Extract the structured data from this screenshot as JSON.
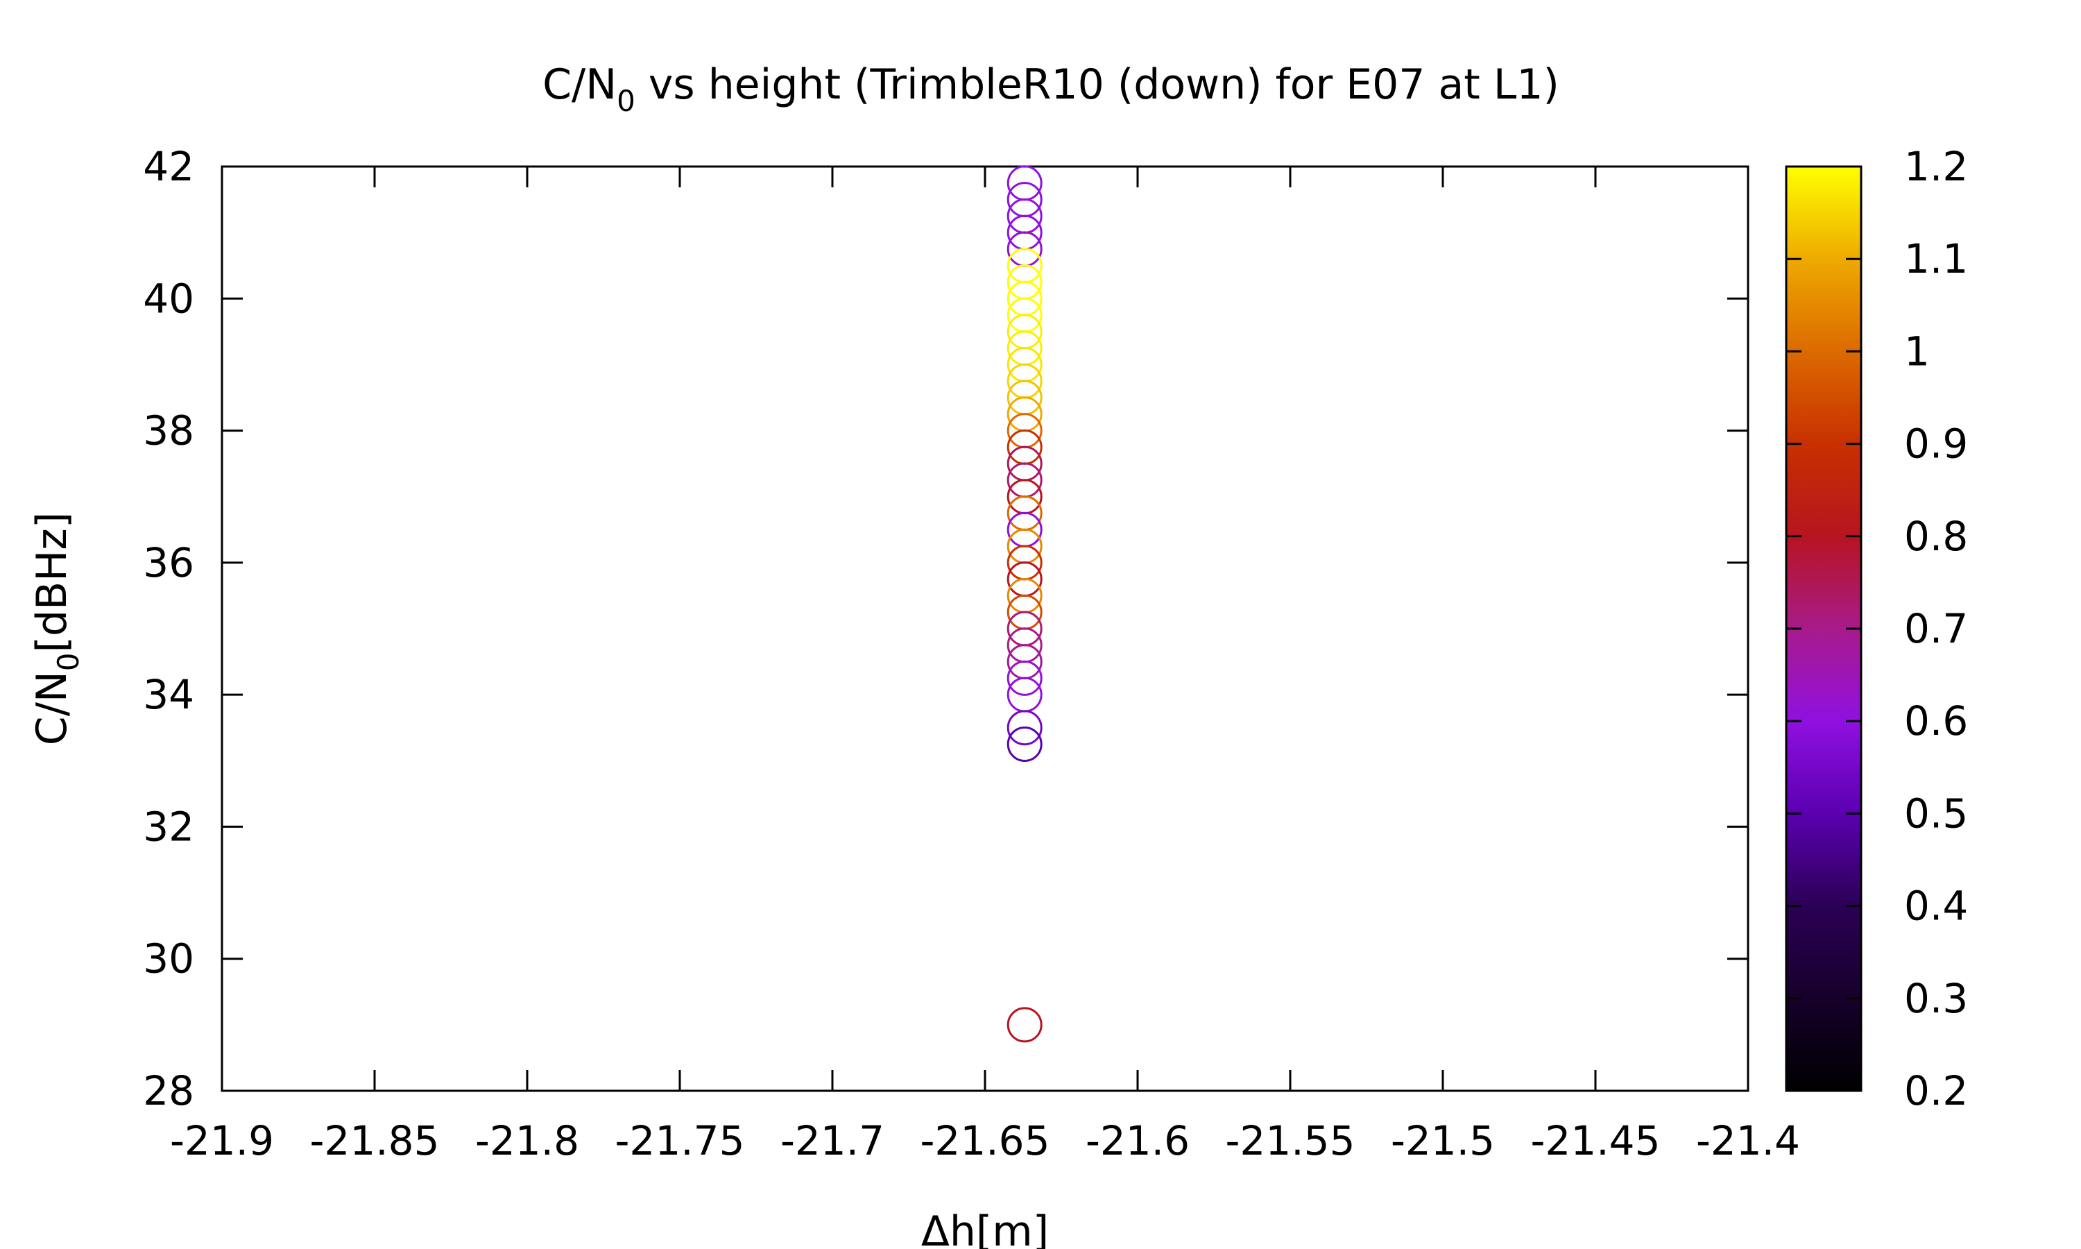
{
  "chart_data": {
    "type": "scatter",
    "title_main": "C/N",
    "title_sub": "0",
    "title_rest": " vs height (TrimbleR10 (down) for E07 at L1)",
    "xlabel": "Δh[m]",
    "ylabel_main": "C/N",
    "ylabel_sub": "0",
    "ylabel_rest": "[dBHz]",
    "xlim": [
      -21.9,
      -21.4
    ],
    "ylim": [
      28,
      42
    ],
    "xticks": [
      -21.9,
      -21.85,
      -21.8,
      -21.75,
      -21.7,
      -21.65,
      -21.6,
      -21.55,
      -21.5,
      -21.45,
      -21.4
    ],
    "xtick_labels": [
      "-21.9",
      "-21.85",
      "-21.8",
      "-21.75",
      "-21.7",
      "-21.65",
      "-21.6",
      "-21.55",
      "-21.5",
      "-21.45",
      "-21.4"
    ],
    "yticks": [
      28,
      30,
      32,
      34,
      36,
      38,
      40,
      42
    ],
    "ytick_labels": [
      "28",
      "30",
      "32",
      "34",
      "36",
      "38",
      "40",
      "42"
    ],
    "colorbar": {
      "range": [
        0.2,
        1.2
      ],
      "ticks": [
        0.2,
        0.3,
        0.4,
        0.5,
        0.6,
        0.7,
        0.8,
        0.9,
        1,
        1.1,
        1.2
      ],
      "tick_labels": [
        "0.2",
        "0.3",
        "0.4",
        "0.5",
        "0.6",
        "0.7",
        "0.8",
        "0.9",
        "1",
        "1.1",
        "1.2"
      ],
      "palette": "black-purple-red-yellow"
    },
    "marker": "open-circle",
    "grid": false,
    "points": [
      {
        "x": -21.637,
        "y": 41.75,
        "c": 0.6
      },
      {
        "x": -21.637,
        "y": 41.5,
        "c": 0.6
      },
      {
        "x": -21.637,
        "y": 41.25,
        "c": 0.6
      },
      {
        "x": -21.637,
        "y": 41.0,
        "c": 0.6
      },
      {
        "x": -21.637,
        "y": 40.75,
        "c": 0.62
      },
      {
        "x": -21.637,
        "y": 40.5,
        "c": 1.2
      },
      {
        "x": -21.637,
        "y": 40.25,
        "c": 1.2
      },
      {
        "x": -21.637,
        "y": 40.0,
        "c": 1.2
      },
      {
        "x": -21.637,
        "y": 39.75,
        "c": 1.2
      },
      {
        "x": -21.637,
        "y": 39.5,
        "c": 1.18
      },
      {
        "x": -21.637,
        "y": 39.25,
        "c": 1.18
      },
      {
        "x": -21.637,
        "y": 39.0,
        "c": 1.17
      },
      {
        "x": -21.637,
        "y": 38.75,
        "c": 1.15
      },
      {
        "x": -21.637,
        "y": 38.5,
        "c": 1.13
      },
      {
        "x": -21.637,
        "y": 38.25,
        "c": 1.1
      },
      {
        "x": -21.637,
        "y": 38.0,
        "c": 1.0
      },
      {
        "x": -21.637,
        "y": 37.75,
        "c": 0.9
      },
      {
        "x": -21.637,
        "y": 37.5,
        "c": 0.75
      },
      {
        "x": -21.637,
        "y": 37.25,
        "c": 0.72
      },
      {
        "x": -21.637,
        "y": 37.0,
        "c": 0.8
      },
      {
        "x": -21.637,
        "y": 36.75,
        "c": 1.0
      },
      {
        "x": -21.637,
        "y": 36.5,
        "c": 0.6
      },
      {
        "x": -21.637,
        "y": 36.25,
        "c": 1.05
      },
      {
        "x": -21.637,
        "y": 36.0,
        "c": 0.9
      },
      {
        "x": -21.637,
        "y": 35.75,
        "c": 0.8
      },
      {
        "x": -21.637,
        "y": 35.5,
        "c": 1.05
      },
      {
        "x": -21.637,
        "y": 35.25,
        "c": 0.95
      },
      {
        "x": -21.637,
        "y": 35.0,
        "c": 0.72
      },
      {
        "x": -21.637,
        "y": 34.75,
        "c": 0.7
      },
      {
        "x": -21.637,
        "y": 34.5,
        "c": 0.68
      },
      {
        "x": -21.637,
        "y": 34.25,
        "c": 0.62
      },
      {
        "x": -21.637,
        "y": 34.0,
        "c": 0.6
      },
      {
        "x": -21.637,
        "y": 33.5,
        "c": 0.55
      },
      {
        "x": -21.637,
        "y": 33.25,
        "c": 0.5
      },
      {
        "x": -21.637,
        "y": 29.0,
        "c": 0.8
      }
    ]
  }
}
